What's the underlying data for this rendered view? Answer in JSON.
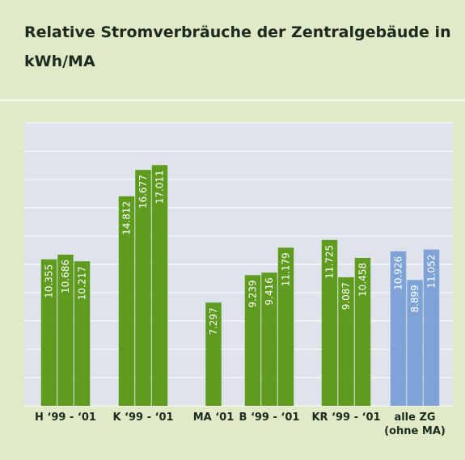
{
  "chart_data": {
    "type": "bar",
    "title_lines": [
      "Relative Stromverbräuche der Zentralgebäude in",
      "kWh/MA"
    ],
    "groups": [
      {
        "label": [
          "H ‘99 - ‘01"
        ],
        "color": "#5e9b1f",
        "values": [
          10.355,
          10.686,
          10.217
        ]
      },
      {
        "label": [
          "K ‘99 - ‘01"
        ],
        "color": "#5e9b1f",
        "values": [
          14.812,
          16.677,
          17.011
        ]
      },
      {
        "label": [
          "MA ‘01"
        ],
        "color": "#5e9b1f",
        "values": [
          null,
          7.297,
          null
        ]
      },
      {
        "label": [
          "B ‘99 - ‘01"
        ],
        "color": "#5e9b1f",
        "values": [
          9.239,
          9.416,
          11.179
        ]
      },
      {
        "label": [
          "KR ‘99 - ‘01"
        ],
        "color": "#5e9b1f",
        "values": [
          11.725,
          9.087,
          10.458
        ]
      },
      {
        "label": [
          "alle ZG",
          "(ohne MA)"
        ],
        "color": "#7fa3d6",
        "values": [
          10.926,
          8.899,
          11.052
        ]
      }
    ],
    "ylim": [
      0,
      20
    ],
    "yticks": [
      0,
      2,
      4,
      6,
      8,
      10,
      12,
      14,
      16,
      18,
      20
    ],
    "grid": true
  }
}
